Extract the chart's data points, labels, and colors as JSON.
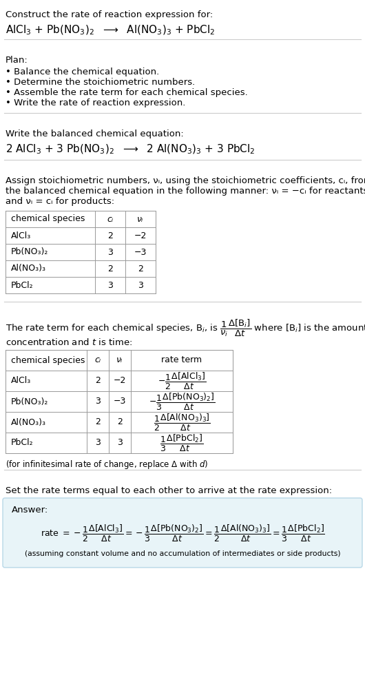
{
  "bg_color": "#ffffff",
  "answer_box_color": "#e8f4f8",
  "answer_box_border": "#b8d8e8",
  "font_family": "DejaVu Sans",
  "sections": {
    "title": "Construct the rate of reaction expression for:",
    "reaction_unbalanced_parts": [
      "AlCl",
      "3",
      " + Pb(NO",
      "3",
      ")",
      "2",
      "  ⟶  Al(NO",
      "3",
      ")",
      "3",
      " + PbCl",
      "2"
    ],
    "plan_header": "Plan:",
    "plan_items": [
      "• Balance the chemical equation.",
      "• Determine the stoichiometric numbers.",
      "• Assemble the rate term for each chemical species.",
      "• Write the rate of reaction expression."
    ],
    "balanced_header": "Write the balanced chemical equation:",
    "balanced_reaction": "2 AlCl₃ + 3 Pb(NO₃)₂  ⟶  2 Al(NO₃)₃ + 3 PbCl₂",
    "stoich_text": [
      "Assign stoichiometric numbers, νᵢ, using the stoichiometric coefficients, cᵢ, from",
      "the balanced chemical equation in the following manner: νᵢ = −cᵢ for reactants",
      "and νᵢ = cᵢ for products:"
    ],
    "table1_headers": [
      "chemical species",
      "cᵢ",
      "νᵢ"
    ],
    "table1_rows": [
      [
        "AlCl₃",
        "2",
        "−2"
      ],
      [
        "Pb(NO₃)₂",
        "3",
        "−3"
      ],
      [
        "Al(NO₃)₃",
        "2",
        "2"
      ],
      [
        "PbCl₂",
        "3",
        "3"
      ]
    ],
    "rate_text1": "The rate term for each chemical species, Bᵢ, is",
    "rate_text2": "where [Bᵢ] is the amount",
    "rate_text3": "concentration and t is time:",
    "table2_headers": [
      "chemical species",
      "cᵢ",
      "νᵢ",
      "rate term"
    ],
    "table2_rows": [
      [
        "AlCl₃",
        "2",
        "−2"
      ],
      [
        "Pb(NO₃)₂",
        "3",
        "−3"
      ],
      [
        "Al(NO₃)₃",
        "2",
        "2"
      ],
      [
        "PbCl₂",
        "3",
        "3"
      ]
    ],
    "infinitesimal_note": "(for infinitesimal rate of change, replace Δ with d)",
    "set_rate_text": "Set the rate terms equal to each other to arrive at the rate expression:",
    "answer_label": "Answer:"
  }
}
